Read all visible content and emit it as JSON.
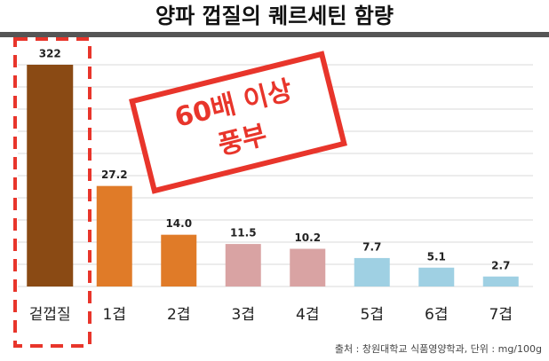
{
  "chart_data": {
    "type": "bar",
    "title": "양파 껍질의 퀘르세틴 함량",
    "categories": [
      "겉껍질",
      "1겹",
      "2겹",
      "3겹",
      "4겹",
      "5겹",
      "6겹",
      "7겹"
    ],
    "values": [
      322,
      27.2,
      14.0,
      11.5,
      10.2,
      7.7,
      5.1,
      2.7
    ],
    "value_labels": [
      "322",
      "27.2",
      "14.0",
      "11.5",
      "10.2",
      "7.7",
      "5.1",
      "2.7"
    ],
    "colors": [
      "#8a4a14",
      "#e07b28",
      "#e07b28",
      "#d9a3a3",
      "#d9a3a3",
      "#9fd0e3",
      "#9fd0e3",
      "#9fd0e3"
    ],
    "ylim": [
      0,
      60
    ],
    "yticks": [
      0,
      6,
      12,
      18,
      24,
      30,
      36,
      42,
      48,
      54,
      60
    ],
    "grid": true,
    "annotation": [
      "60배 이상",
      "풍부"
    ],
    "source": "출처 : 창원대학교 식품영양학과, 단위 : mg/100g"
  }
}
